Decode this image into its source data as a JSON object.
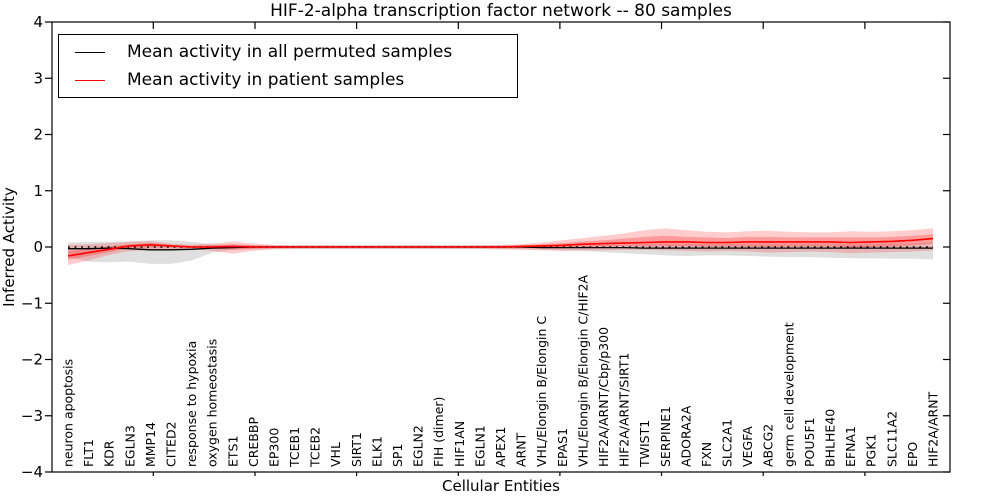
{
  "chart_data": {
    "type": "line",
    "title": "HIF-2-alpha transcription factor network -- 80 samples",
    "xlabel": "Cellular Entities",
    "ylabel": "Inferred Activity",
    "ylim": [
      -4,
      4
    ],
    "yticks": [
      4,
      3,
      2,
      1,
      0,
      -1,
      -2,
      -3,
      -4
    ],
    "ytick_labels": [
      "4",
      "3",
      "2",
      "1",
      "0",
      "−1",
      "−2",
      "−3",
      "−4"
    ],
    "grid": false,
    "legend_position": "upper left",
    "categories": [
      "neuron apoptosis",
      "FLT1",
      "KDR",
      "EGLN3",
      "MMP14",
      "CITED2",
      "response to hypoxia",
      "oxygen homeostasis",
      "ETS1",
      "CREBBP",
      "EP300",
      "TCEB1",
      "TCEB2",
      "VHL",
      "SIRT1",
      "ELK1",
      "SP1",
      "EGLN2",
      "FIH (dimer)",
      "HIF1AN",
      "EGLN1",
      "APEX1",
      "ARNT",
      "VHL/Elongin B/Elongin C",
      "EPAS1",
      "VHL/Elongin B/Elongin C/HIF2A",
      "HIF2A/ARNT/Cbp/p300",
      "HIF2A/ARNT/SIRT1",
      "TWIST1",
      "SERPINE1",
      "ADORA2A",
      "FXN",
      "SLC2A1",
      "VEGFA",
      "ABCG2",
      "germ cell development",
      "POU5F1",
      "BHLHE40",
      "EFNA1",
      "PGK1",
      "SLC11A2",
      "EPO",
      "HIF2A/ARNT"
    ],
    "series": [
      {
        "name": "Mean activity in all permuted samples",
        "color": "#000000",
        "style": "solid",
        "values": [
          -0.03,
          -0.03,
          -0.02,
          -0.03,
          -0.05,
          -0.05,
          -0.04,
          -0.02,
          -0.01,
          0,
          0,
          0,
          0,
          0,
          0,
          0,
          0,
          0,
          0,
          0,
          0,
          0,
          0,
          -0.01,
          -0.01,
          -0.01,
          -0.01,
          -0.01,
          -0.02,
          -0.02,
          -0.02,
          -0.02,
          -0.02,
          -0.02,
          -0.02,
          -0.02,
          -0.02,
          -0.02,
          -0.02,
          -0.02,
          -0.02,
          -0.02,
          -0.02
        ]
      },
      {
        "name": "Mean activity in patient samples",
        "color": "#ff0000",
        "style": "solid",
        "values": [
          -0.16,
          -0.1,
          -0.04,
          0.02,
          0.04,
          0.02,
          0,
          0,
          0.01,
          0,
          0,
          0,
          0,
          0,
          0,
          0,
          0,
          0,
          0,
          0,
          0,
          0,
          0.01,
          0.02,
          0.03,
          0.05,
          0.06,
          0.07,
          0.08,
          0.09,
          0.09,
          0.08,
          0.08,
          0.09,
          0.09,
          0.09,
          0.09,
          0.09,
          0.08,
          0.09,
          0.1,
          0.12,
          0.15
        ]
      }
    ],
    "reference_line": {
      "value": 0,
      "style": "dotted",
      "color": "#000000"
    },
    "bands": [
      {
        "name": "permuted samples range",
        "color": "#808080",
        "opacity": 0.25,
        "lower": [
          -0.18,
          -0.26,
          -0.27,
          -0.26,
          -0.3,
          -0.3,
          -0.24,
          -0.1,
          -0.05,
          -0.04,
          -0.04,
          -0.04,
          -0.04,
          -0.04,
          -0.04,
          -0.04,
          -0.04,
          -0.04,
          -0.04,
          -0.04,
          -0.04,
          -0.04,
          -0.04,
          -0.05,
          -0.06,
          -0.07,
          -0.09,
          -0.11,
          -0.13,
          -0.15,
          -0.16,
          -0.15,
          -0.15,
          -0.16,
          -0.17,
          -0.18,
          -0.18,
          -0.19,
          -0.2,
          -0.2,
          -0.21,
          -0.21,
          -0.22
        ],
        "upper": [
          0.08,
          0.09,
          0.09,
          0.1,
          0.12,
          0.12,
          0.09,
          0.05,
          0.04,
          0.03,
          0.03,
          0.03,
          0.03,
          0.03,
          0.03,
          0.03,
          0.03,
          0.03,
          0.03,
          0.03,
          0.03,
          0.03,
          0.03,
          0.03,
          0.04,
          0.04,
          0.04,
          0.04,
          0.05,
          0.05,
          0.05,
          0.05,
          0.05,
          0.05,
          0.05,
          0.05,
          0.05,
          0.05,
          0.05,
          0.05,
          0.06,
          0.06,
          0.08
        ]
      },
      {
        "name": "patient samples range (outer)",
        "color": "#ff1a1a",
        "opacity": 0.22,
        "lower": [
          -0.32,
          -0.24,
          -0.14,
          -0.07,
          -0.06,
          -0.05,
          -0.04,
          -0.07,
          -0.12,
          -0.07,
          -0.04,
          -0.03,
          -0.03,
          -0.03,
          -0.03,
          -0.03,
          -0.03,
          -0.03,
          -0.03,
          -0.03,
          -0.03,
          -0.04,
          -0.05,
          -0.06,
          -0.07,
          -0.06,
          -0.06,
          -0.05,
          -0.05,
          -0.06,
          -0.07,
          -0.08,
          -0.07,
          -0.08,
          -0.1,
          -0.09,
          -0.08,
          -0.09,
          -0.11,
          -0.1,
          -0.09,
          -0.08,
          -0.06
        ],
        "upper": [
          0.04,
          0.05,
          0.07,
          0.09,
          0.1,
          0.06,
          0.04,
          0.06,
          0.1,
          0.06,
          0.04,
          0.03,
          0.03,
          0.03,
          0.03,
          0.03,
          0.03,
          0.03,
          0.03,
          0.03,
          0.03,
          0.04,
          0.05,
          0.08,
          0.12,
          0.16,
          0.2,
          0.24,
          0.3,
          0.33,
          0.3,
          0.27,
          0.26,
          0.28,
          0.29,
          0.27,
          0.26,
          0.26,
          0.28,
          0.27,
          0.28,
          0.3,
          0.33
        ]
      },
      {
        "name": "patient samples range (inner)",
        "color": "#ff1a1a",
        "opacity": 0.28,
        "lower": [
          -0.23,
          -0.16,
          -0.09,
          -0.02,
          -0.01,
          -0.01,
          -0.02,
          -0.03,
          -0.05,
          -0.03,
          -0.02,
          -0.01,
          -0.01,
          -0.01,
          -0.01,
          -0.01,
          -0.01,
          -0.01,
          -0.01,
          -0.01,
          -0.01,
          -0.02,
          -0.02,
          -0.02,
          -0.02,
          0.0,
          0.01,
          0.02,
          0.02,
          0.02,
          0.02,
          0.01,
          0.01,
          0.01,
          0.0,
          0.01,
          0.01,
          0.01,
          -0.01,
          0.0,
          0.01,
          0.03,
          0.06
        ],
        "upper": [
          -0.07,
          -0.03,
          0.01,
          0.05,
          0.07,
          0.04,
          0.02,
          0.03,
          0.05,
          0.03,
          0.02,
          0.01,
          0.01,
          0.01,
          0.01,
          0.01,
          0.01,
          0.01,
          0.01,
          0.01,
          0.01,
          0.02,
          0.03,
          0.05,
          0.07,
          0.1,
          0.12,
          0.15,
          0.18,
          0.2,
          0.18,
          0.17,
          0.16,
          0.18,
          0.18,
          0.17,
          0.17,
          0.17,
          0.17,
          0.17,
          0.18,
          0.2,
          0.23
        ]
      }
    ]
  },
  "legend": {
    "entries": [
      {
        "label": "Mean activity in all permuted samples",
        "color": "#000000"
      },
      {
        "label": "Mean activity in patient samples",
        "color": "#ff0000"
      }
    ]
  }
}
